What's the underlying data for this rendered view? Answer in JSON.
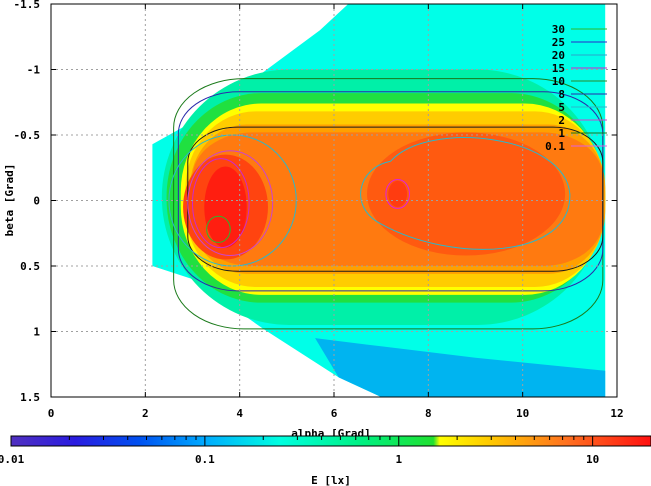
{
  "chart_data": {
    "type": "heatmap",
    "title": "",
    "xlabel": "alpha [Grad]",
    "ylabel": "beta [Grad]",
    "xlim": [
      0,
      12
    ],
    "ylim": [
      -1.5,
      1.5
    ],
    "y_reversed": true,
    "grid": true,
    "x_ticks": [
      "0",
      "2",
      "4",
      "6",
      "8",
      "10",
      "12"
    ],
    "y_ticks": [
      "-1.5",
      "-1",
      "-0.5",
      "0",
      "0.5",
      "1",
      "1.5"
    ],
    "contour_legend": {
      "placement": "top-right",
      "levels": [
        {
          "label": "30",
          "color": "#2bb82b"
        },
        {
          "label": "25",
          "color": "#2a2acc"
        },
        {
          "label": "20",
          "color": "#2aa6cc"
        },
        {
          "label": "15",
          "color": "#cc2acc"
        },
        {
          "label": "10",
          "color": "#2a8a2a"
        },
        {
          "label": "8",
          "color": "#2a2aaa"
        },
        {
          "label": "5",
          "color": "#2ab8cc"
        },
        {
          "label": "2",
          "color": "#cc44cc"
        },
        {
          "label": "1",
          "color": "#1a7a1a"
        },
        {
          "label": "0.1",
          "color": "#e060e0"
        }
      ]
    },
    "colorbar": {
      "label": "E [lx]",
      "scale": "log",
      "range": [
        0.01,
        20
      ],
      "tick_labels": [
        {
          "value": 0.01,
          "label": "0.01"
        },
        {
          "value": 0.1,
          "label": "0.1"
        },
        {
          "value": 1,
          "label": "1"
        },
        {
          "value": 10,
          "label": "10"
        }
      ]
    },
    "field": {
      "domain_alpha": [
        2.15,
        11.75
      ],
      "peaks": [
        {
          "alpha": 3.7,
          "beta": 0.05,
          "value": 15
        },
        {
          "alpha": 8.8,
          "beta": -0.05,
          "value": 9
        }
      ]
    }
  }
}
